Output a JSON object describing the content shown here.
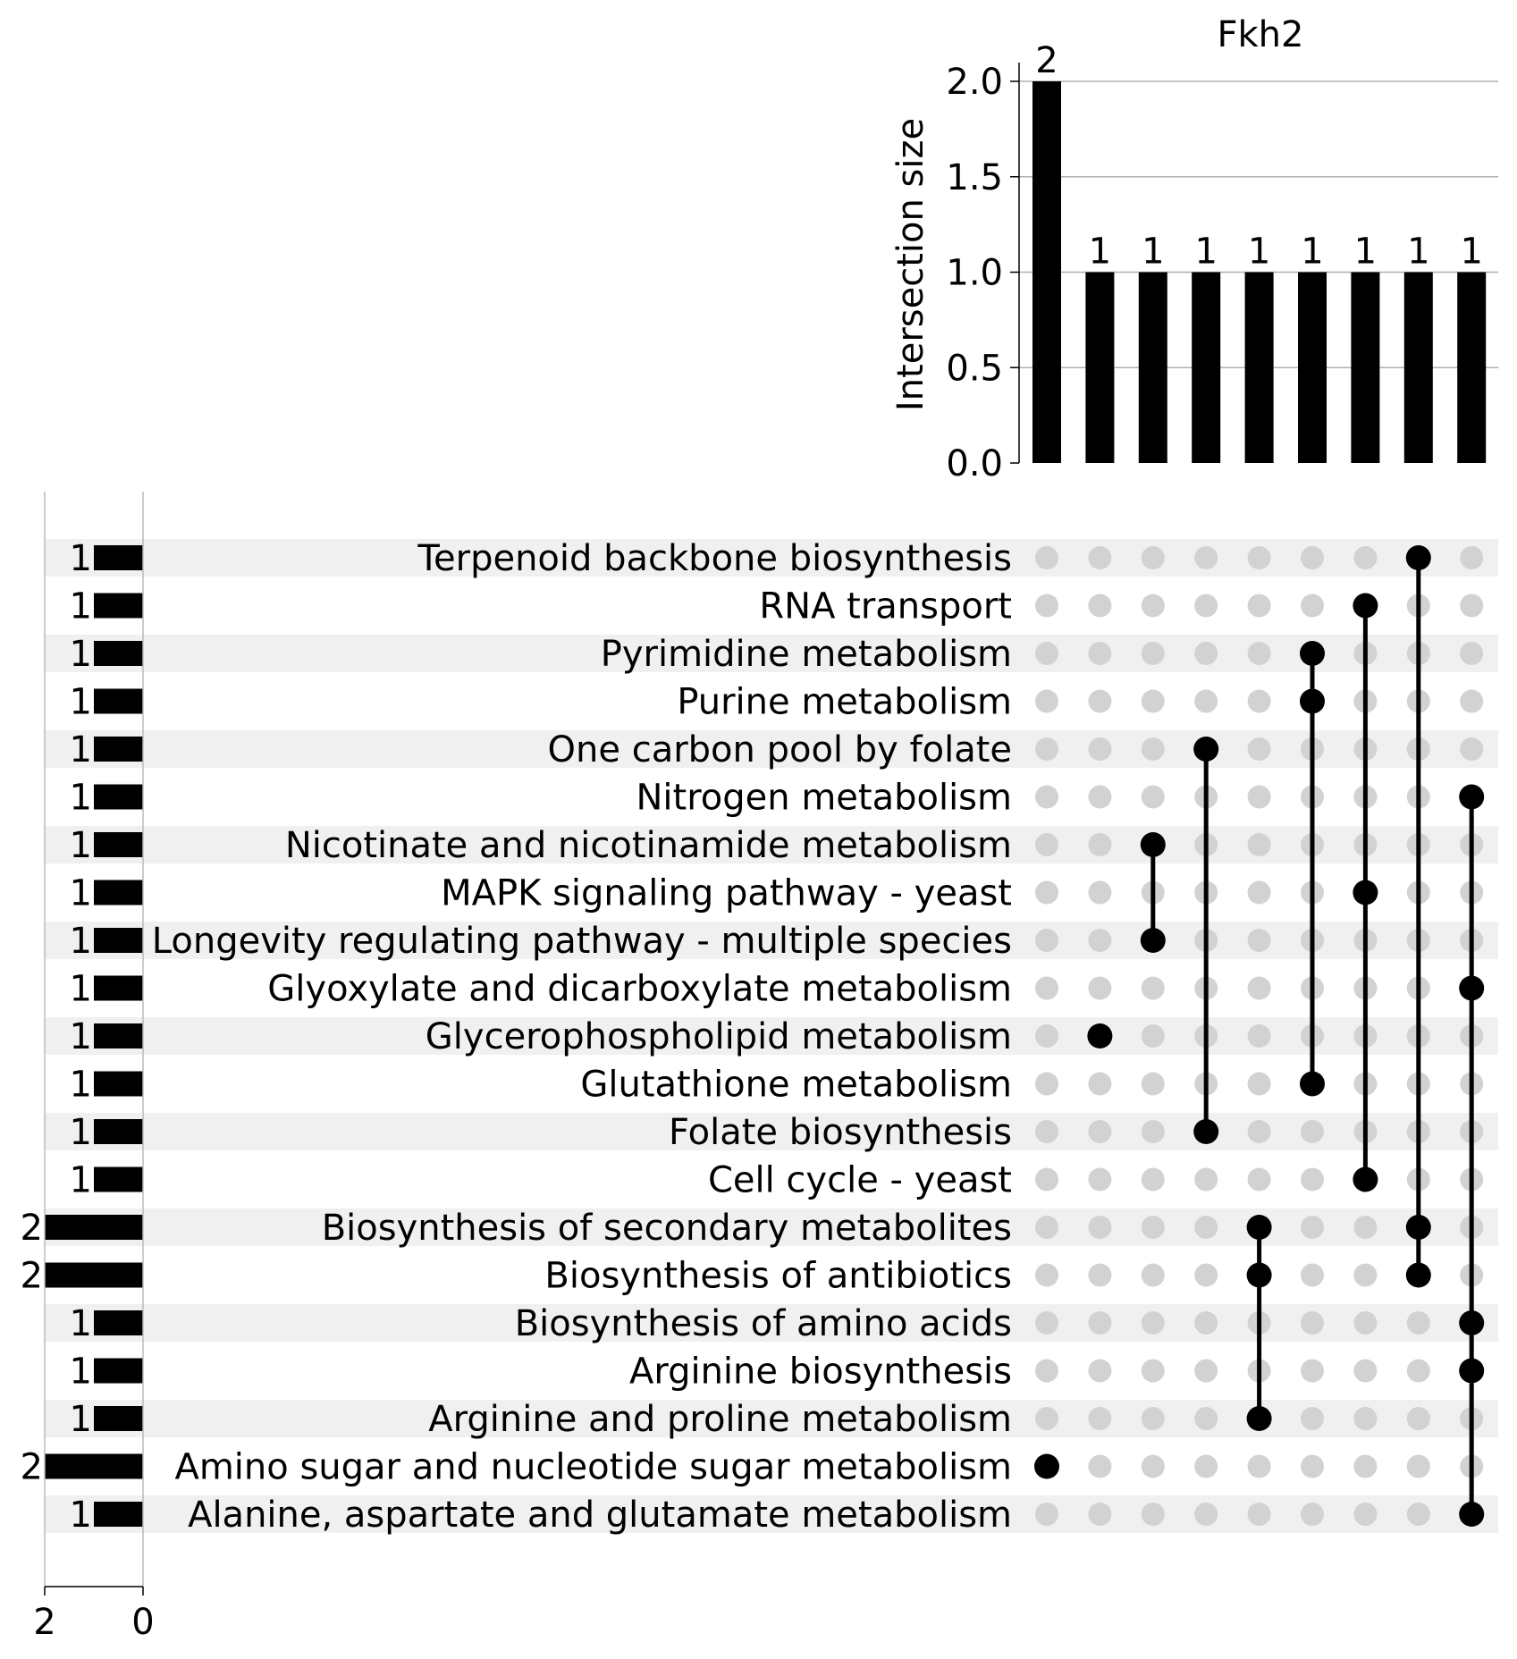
{
  "chart_data": {
    "type": "bar",
    "title": "Fkh2",
    "ylabel": "Intersection size",
    "ylim": [
      0,
      2.1
    ],
    "yticks": [
      "0.0",
      "0.5",
      "1.0",
      "1.5",
      "2.0"
    ],
    "set_size_ticks": [
      "2",
      "0"
    ],
    "sets": [
      "Terpenoid backbone biosynthesis",
      "RNA transport",
      "Pyrimidine metabolism",
      "Purine metabolism",
      "One carbon pool by folate",
      "Nitrogen metabolism",
      "Nicotinate and nicotinamide metabolism",
      "MAPK signaling pathway - yeast",
      "Longevity regulating pathway - multiple species",
      "Glyoxylate and dicarboxylate metabolism",
      "Glycerophospholipid metabolism",
      "Glutathione metabolism",
      "Folate biosynthesis",
      "Cell cycle - yeast",
      "Biosynthesis of secondary metabolites",
      "Biosynthesis of antibiotics",
      "Biosynthesis of amino acids",
      "Arginine biosynthesis",
      "Arginine and proline metabolism",
      "Amino sugar and nucleotide sugar metabolism",
      "Alanine, aspartate and glutamate metabolism"
    ],
    "set_sizes": [
      1,
      1,
      1,
      1,
      1,
      1,
      1,
      1,
      1,
      1,
      1,
      1,
      1,
      1,
      2,
      2,
      1,
      1,
      1,
      2,
      1
    ],
    "set_size_labels": [
      "1",
      "1",
      "1",
      "1",
      "1",
      "1",
      "1",
      "1",
      "1",
      "1",
      "1",
      "1",
      "1",
      "1",
      "2",
      "2",
      "1",
      "1",
      "1",
      "2",
      "1"
    ],
    "intersection_sizes": [
      2,
      1,
      1,
      1,
      1,
      1,
      1,
      1,
      1
    ],
    "intersection_labels": [
      "2",
      "1",
      "1",
      "1",
      "1",
      "1",
      "1",
      "1",
      "1"
    ],
    "intersections": [
      [
        "Amino sugar and nucleotide sugar metabolism"
      ],
      [
        "Glycerophospholipid metabolism"
      ],
      [
        "Nicotinate and nicotinamide metabolism",
        "Longevity regulating pathway - multiple species"
      ],
      [
        "One carbon pool by folate",
        "Folate biosynthesis"
      ],
      [
        "Biosynthesis of secondary metabolites",
        "Biosynthesis of antibiotics",
        "Arginine and proline metabolism"
      ],
      [
        "Pyrimidine metabolism",
        "Purine metabolism",
        "Glutathione metabolism"
      ],
      [
        "RNA transport",
        "MAPK signaling pathway - yeast",
        "Cell cycle - yeast"
      ],
      [
        "Terpenoid backbone biosynthesis",
        "Biosynthesis of secondary metabolites",
        "Biosynthesis of antibiotics"
      ],
      [
        "Nitrogen metabolism",
        "Glyoxylate and dicarboxylate metabolism",
        "Biosynthesis of amino acids",
        "Arginine biosynthesis",
        "Alanine, aspartate and glutamate metabolism"
      ]
    ],
    "grid": true,
    "colors": {
      "bar": "#000000",
      "dot_active": "#000000",
      "dot_inactive": "#d2d2d2",
      "row_shade": "#f0f0f0",
      "grid": "#b0b0b0"
    }
  }
}
